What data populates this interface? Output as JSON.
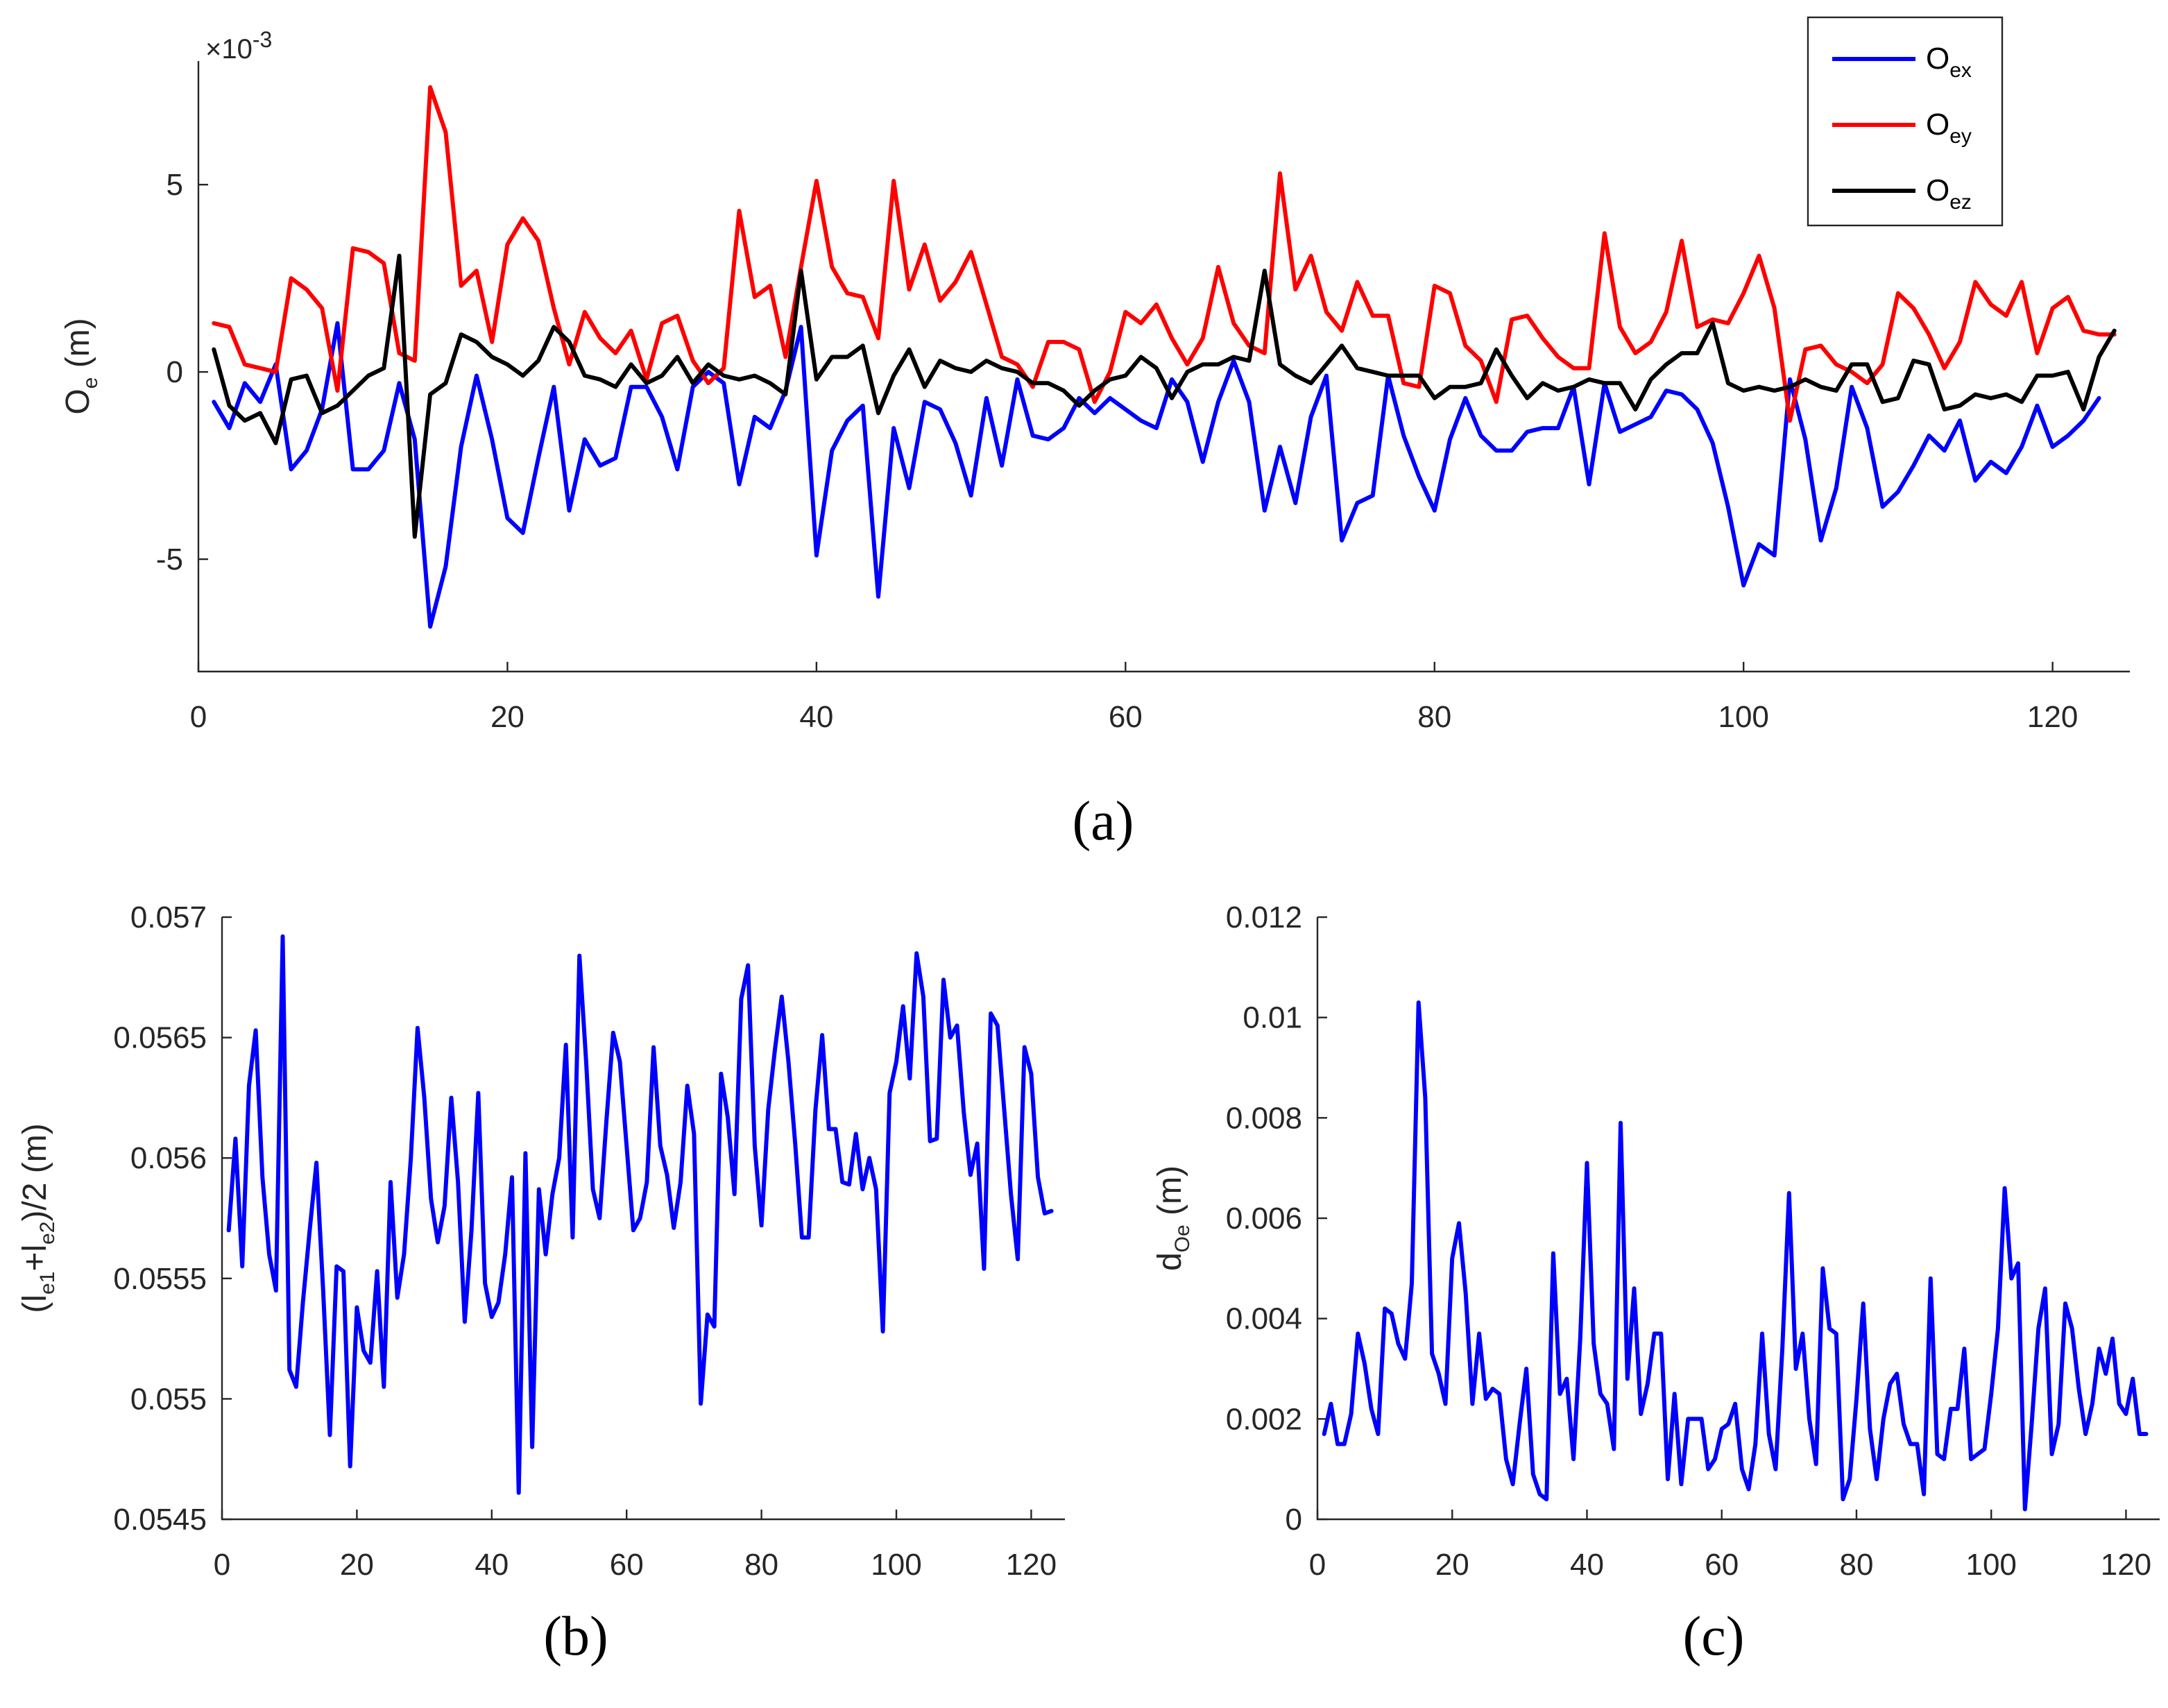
{
  "chart_data": [
    {
      "id": "a",
      "type": "line",
      "caption": "(a)",
      "ylabel": {
        "main": "O",
        "sub": "e",
        "unit": "  (m)"
      },
      "exponent_label": {
        "prefix": "×10",
        "power": "-3"
      },
      "xlim": [
        0,
        125
      ],
      "ylim": [
        -8,
        8.3
      ],
      "xticks": [
        0,
        20,
        40,
        60,
        80,
        100,
        120
      ],
      "xtick_labels": [
        "0",
        "20",
        "40",
        "60",
        "80",
        "100",
        "120"
      ],
      "yticks": [
        -5,
        0,
        5
      ],
      "ytick_labels": [
        "-5",
        "0",
        "5"
      ],
      "legend": [
        {
          "main": "O",
          "sub": "ex",
          "color": "#0000ff"
        },
        {
          "main": "O",
          "sub": "ey",
          "color": "#ff0000"
        },
        {
          "main": "O",
          "sub": "ez",
          "color": "#000000"
        }
      ],
      "series": [
        {
          "name": "Oex",
          "color": "#0000ff",
          "values": [
            -0.8,
            -1.5,
            -0.3,
            -0.8,
            0.2,
            -2.6,
            -2.1,
            -1.0,
            1.3,
            -2.6,
            -2.6,
            -2.1,
            -0.3,
            -1.8,
            -6.8,
            -5.2,
            -2.0,
            -0.1,
            -1.8,
            -3.9,
            -4.3,
            -2.3,
            -0.4,
            -3.7,
            -1.8,
            -2.5,
            -2.3,
            -0.4,
            -0.4,
            -1.2,
            -2.6,
            -0.4,
            0.0,
            -0.3,
            -3.0,
            -1.2,
            -1.5,
            -0.5,
            1.2,
            -4.9,
            -2.1,
            -1.3,
            -0.9,
            -6.0,
            -1.5,
            -3.1,
            -0.8,
            -1.0,
            -1.9,
            -3.3,
            -0.7,
            -2.5,
            -0.2,
            -1.7,
            -1.8,
            -1.5,
            -0.7,
            -1.1,
            -0.7,
            -1.0,
            -1.3,
            -1.5,
            -0.2,
            -0.8,
            -2.4,
            -0.8,
            0.3,
            -0.8,
            -3.7,
            -2.0,
            -3.5,
            -1.2,
            -0.1,
            -4.5,
            -3.5,
            -3.3,
            -0.1,
            -1.7,
            -2.8,
            -3.7,
            -1.8,
            -0.7,
            -1.7,
            -2.1,
            -2.1,
            -1.6,
            -1.5,
            -1.5,
            -0.4,
            -3.0,
            -0.3,
            -1.6,
            -1.4,
            -1.2,
            -0.5,
            -0.6,
            -1.0,
            -1.9,
            -3.6,
            -5.7,
            -4.6,
            -4.9,
            -0.2,
            -1.8,
            -4.5,
            -3.1,
            -0.4,
            -1.5,
            -3.6,
            -3.2,
            -2.5,
            -1.7,
            -2.1,
            -1.3,
            -2.9,
            -2.4,
            -2.7,
            -2.0,
            -0.9,
            -2.0,
            -1.7,
            -1.3,
            -0.7
          ]
        },
        {
          "name": "Oey",
          "color": "#ff0000",
          "values": [
            1.3,
            1.2,
            0.2,
            0.1,
            0.0,
            2.5,
            2.2,
            1.7,
            -0.5,
            3.3,
            3.2,
            2.9,
            0.5,
            0.3,
            7.6,
            6.4,
            2.3,
            2.7,
            0.8,
            3.4,
            4.1,
            3.5,
            1.7,
            0.2,
            1.6,
            0.9,
            0.5,
            1.1,
            -0.2,
            1.3,
            1.5,
            0.3,
            -0.3,
            0.1,
            4.3,
            2.0,
            2.3,
            0.4,
            2.8,
            5.1,
            2.8,
            2.1,
            2.0,
            0.9,
            5.1,
            2.2,
            3.4,
            1.9,
            2.4,
            3.2,
            1.8,
            0.4,
            0.2,
            -0.4,
            0.8,
            0.8,
            0.6,
            -0.8,
            0.0,
            1.6,
            1.3,
            1.8,
            0.9,
            0.2,
            0.9,
            2.8,
            1.3,
            0.7,
            0.5,
            5.3,
            2.2,
            3.1,
            1.6,
            1.1,
            2.4,
            1.5,
            1.5,
            -0.3,
            -0.4,
            2.3,
            2.1,
            0.7,
            0.3,
            -0.8,
            1.4,
            1.5,
            0.9,
            0.4,
            0.1,
            0.1,
            3.7,
            1.2,
            0.5,
            0.8,
            1.6,
            3.5,
            1.2,
            1.4,
            1.3,
            2.1,
            3.1,
            1.7,
            -1.3,
            0.6,
            0.7,
            0.2,
            0.0,
            -0.3,
            0.2,
            2.1,
            1.7,
            1.0,
            0.1,
            0.8,
            2.4,
            1.8,
            1.5,
            2.4,
            0.5,
            1.7,
            2.0,
            1.1,
            1.0,
            1.0
          ]
        },
        {
          "name": "Oez",
          "color": "#000000",
          "values": [
            0.6,
            -0.9,
            -1.3,
            -1.1,
            -1.9,
            -0.2,
            -0.1,
            -1.1,
            -0.9,
            -0.5,
            -0.1,
            0.1,
            3.1,
            -4.4,
            -0.6,
            -0.3,
            1.0,
            0.8,
            0.4,
            0.2,
            -0.1,
            0.3,
            1.2,
            0.8,
            -0.1,
            -0.2,
            -0.4,
            0.2,
            -0.3,
            -0.1,
            0.4,
            -0.3,
            0.2,
            -0.1,
            -0.2,
            -0.1,
            -0.3,
            -0.6,
            2.7,
            -0.2,
            0.4,
            0.4,
            0.7,
            -1.1,
            -0.1,
            0.6,
            -0.4,
            0.3,
            0.1,
            0.0,
            0.3,
            0.1,
            0.0,
            -0.3,
            -0.3,
            -0.5,
            -0.9,
            -0.5,
            -0.2,
            -0.1,
            0.4,
            0.1,
            -0.7,
            0.0,
            0.2,
            0.2,
            0.4,
            0.3,
            2.7,
            0.2,
            -0.1,
            -0.3,
            0.2,
            0.7,
            0.1,
            0.0,
            -0.1,
            -0.1,
            -0.1,
            -0.7,
            -0.4,
            -0.4,
            -0.3,
            0.6,
            -0.1,
            -0.7,
            -0.3,
            -0.5,
            -0.4,
            -0.2,
            -0.3,
            -0.3,
            -1.0,
            -0.2,
            0.2,
            0.5,
            0.5,
            1.3,
            -0.3,
            -0.5,
            -0.4,
            -0.5,
            -0.4,
            -0.2,
            -0.4,
            -0.5,
            0.2,
            0.2,
            -0.8,
            -0.7,
            0.3,
            0.2,
            -1.0,
            -0.9,
            -0.6,
            -0.7,
            -0.6,
            -0.8,
            -0.1,
            -0.1,
            0.0,
            -1.0,
            0.4,
            1.1
          ]
        }
      ]
    },
    {
      "id": "b",
      "type": "line",
      "caption": "(b)",
      "ylabel": {
        "parts": [
          {
            "t": "(l"
          },
          {
            "t": "e1",
            "sub": true
          },
          {
            "t": "+l"
          },
          {
            "t": "e2",
            "sub": true
          },
          {
            "t": ")/2  (m)"
          }
        ]
      },
      "xlim": [
        0,
        125
      ],
      "ylim": [
        0.0545,
        0.057
      ],
      "xticks": [
        0,
        20,
        40,
        60,
        80,
        100,
        120
      ],
      "xtick_labels": [
        "0",
        "20",
        "40",
        "60",
        "80",
        "100",
        "120"
      ],
      "yticks": [
        0.0545,
        0.055,
        0.0555,
        0.056,
        0.0565,
        0.057
      ],
      "ytick_labels": [
        "0.0545",
        "0.055",
        "0.0555",
        "0.056",
        "0.0565",
        "0.057"
      ],
      "series": [
        {
          "name": "(le1+le2)/2",
          "color": "#0000ff",
          "values": [
            0.0557,
            0.05608,
            0.05555,
            0.0563,
            0.05653,
            0.05592,
            0.0556,
            0.05545,
            0.05692,
            0.05512,
            0.05505,
            0.0554,
            0.0557,
            0.05598,
            0.05545,
            0.05485,
            0.05555,
            0.05553,
            0.05472,
            0.05538,
            0.0552,
            0.05515,
            0.05553,
            0.05505,
            0.0559,
            0.05542,
            0.0556,
            0.056,
            0.05654,
            0.05625,
            0.05583,
            0.05565,
            0.0558,
            0.05625,
            0.0559,
            0.05532,
            0.0557,
            0.05627,
            0.05548,
            0.05534,
            0.0554,
            0.0556,
            0.05592,
            0.05461,
            0.05602,
            0.0548,
            0.05587,
            0.0556,
            0.05585,
            0.056,
            0.05647,
            0.05567,
            0.05684,
            0.0564,
            0.05587,
            0.05575,
            0.05615,
            0.05652,
            0.0564,
            0.05605,
            0.0557,
            0.05575,
            0.0559,
            0.05646,
            0.05605,
            0.05593,
            0.05571,
            0.0559,
            0.0563,
            0.0561,
            0.05498,
            0.05535,
            0.0553,
            0.05635,
            0.05617,
            0.05585,
            0.05666,
            0.0568,
            0.05605,
            0.05572,
            0.0562,
            0.05645,
            0.05667,
            0.0564,
            0.05606,
            0.05567,
            0.05567,
            0.0562,
            0.05651,
            0.05612,
            0.05612,
            0.0559,
            0.05589,
            0.0561,
            0.05587,
            0.056,
            0.05587,
            0.05528,
            0.05627,
            0.0564,
            0.05663,
            0.05633,
            0.05685,
            0.05667,
            0.05607,
            0.05608,
            0.05674,
            0.0565,
            0.05655,
            0.05619,
            0.05593,
            0.05606,
            0.05554,
            0.0566,
            0.05655,
            0.0562,
            0.05585,
            0.05558,
            0.05646,
            0.05635,
            0.05592,
            0.05577,
            0.05578
          ]
        }
      ]
    },
    {
      "id": "c",
      "type": "line",
      "caption": "(c)",
      "ylabel": {
        "parts": [
          {
            "t": "d"
          },
          {
            "t": "Oe",
            "sub": true
          },
          {
            "t": "  (m)"
          }
        ]
      },
      "xlim": [
        0,
        125
      ],
      "ylim": [
        0,
        0.012
      ],
      "xticks": [
        0,
        20,
        40,
        60,
        80,
        100,
        120
      ],
      "xtick_labels": [
        "0",
        "20",
        "40",
        "60",
        "80",
        "100",
        "120"
      ],
      "yticks": [
        0,
        0.002,
        0.004,
        0.006,
        0.008,
        0.01,
        0.012
      ],
      "ytick_labels": [
        "0",
        "0.002",
        "0.004",
        "0.006",
        "0.008",
        "0.01",
        "0.012"
      ],
      "series": [
        {
          "name": "dOe",
          "color": "#0000ff",
          "values": [
            0.0017,
            0.0023,
            0.0015,
            0.0015,
            0.0021,
            0.0037,
            0.0031,
            0.0022,
            0.0017,
            0.0042,
            0.0041,
            0.0035,
            0.0032,
            0.0047,
            0.0103,
            0.0084,
            0.0033,
            0.0029,
            0.0023,
            0.0052,
            0.0059,
            0.0045,
            0.0023,
            0.0037,
            0.0024,
            0.0026,
            0.0025,
            0.0012,
            0.0007,
            0.0019,
            0.003,
            0.0009,
            0.0005,
            0.0004,
            0.0053,
            0.0025,
            0.0028,
            0.0012,
            0.0036,
            0.0071,
            0.0035,
            0.0025,
            0.0023,
            0.0014,
            0.0079,
            0.0028,
            0.0046,
            0.0021,
            0.0027,
            0.0037,
            0.0037,
            0.0008,
            0.0025,
            0.0007,
            0.002,
            0.002,
            0.002,
            0.001,
            0.0012,
            0.0018,
            0.0019,
            0.0023,
            0.001,
            0.0006,
            0.0015,
            0.0037,
            0.0017,
            0.001,
            0.0034,
            0.0065,
            0.003,
            0.0037,
            0.002,
            0.0011,
            0.005,
            0.0038,
            0.0037,
            0.0004,
            0.0008,
            0.0024,
            0.0043,
            0.0018,
            0.0008,
            0.002,
            0.0027,
            0.0029,
            0.0019,
            0.0015,
            0.0015,
            0.0005,
            0.0048,
            0.0013,
            0.0012,
            0.0022,
            0.0022,
            0.0034,
            0.0012,
            0.0013,
            0.0014,
            0.0025,
            0.0038,
            0.0066,
            0.0048,
            0.0051,
            0.0002,
            0.0019,
            0.0038,
            0.0046,
            0.0013,
            0.0019,
            0.0043,
            0.0038,
            0.0026,
            0.0017,
            0.0023,
            0.0034,
            0.0029,
            0.0036,
            0.0023,
            0.0021,
            0.0028,
            0.0017,
            0.0017
          ]
        }
      ]
    }
  ]
}
